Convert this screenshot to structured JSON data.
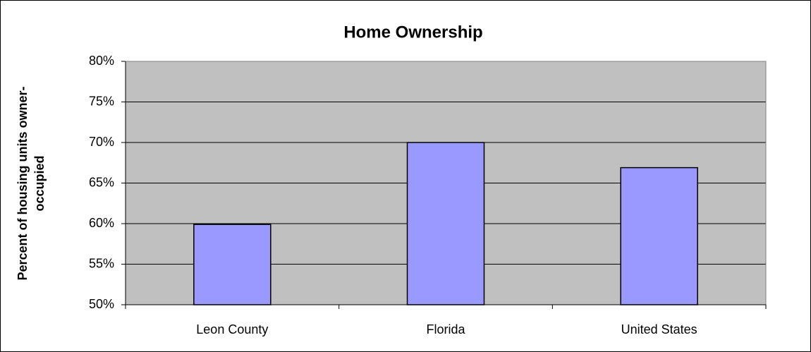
{
  "chart_data": {
    "type": "bar",
    "title": "Home Ownership",
    "ylabel": [
      "Percent of housing units owner-",
      "occupied"
    ],
    "categories": [
      "Leon County",
      "Florida",
      "United States"
    ],
    "values": [
      59.9,
      70.0,
      66.9
    ],
    "color": "#9999ff",
    "plot_background": "#c0c0c0",
    "ylim": [
      50,
      80
    ],
    "yticks": [
      {
        "value": 50,
        "label": "50%"
      },
      {
        "value": 55,
        "label": "55%"
      },
      {
        "value": 60,
        "label": "60%"
      },
      {
        "value": 65,
        "label": "65%"
      },
      {
        "value": 70,
        "label": "70%"
      },
      {
        "value": 75,
        "label": "75%"
      },
      {
        "value": 80,
        "label": "80%"
      }
    ],
    "grid": true
  }
}
